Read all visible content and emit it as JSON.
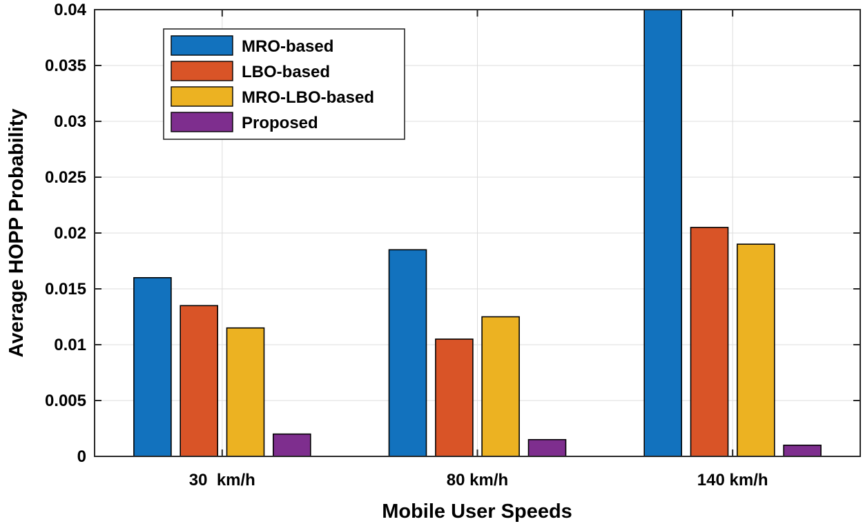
{
  "chart_data": {
    "type": "bar",
    "title": "",
    "xlabel": "Mobile User Speeds",
    "ylabel": "Average HOPP Probability",
    "categories": [
      "30  km/h",
      "80 km/h",
      "140 km/h"
    ],
    "ylim": [
      0,
      0.04
    ],
    "yticks": [
      0,
      0.005,
      0.01,
      0.015,
      0.02,
      0.025,
      0.03,
      0.035,
      0.04
    ],
    "ytick_labels": [
      "0",
      "0.005",
      "0.01",
      "0.015",
      "0.02",
      "0.025",
      "0.03",
      "0.035",
      "0.04"
    ],
    "grid": true,
    "legend_position": "top-left",
    "series": [
      {
        "name": "MRO-based",
        "color": "#1272BE",
        "values": [
          0.016,
          0.0185,
          0.04
        ]
      },
      {
        "name": "LBO-based",
        "color": "#D95427",
        "values": [
          0.0135,
          0.0105,
          0.0205
        ]
      },
      {
        "name": "MRO-LBO-based",
        "color": "#ECB222",
        "values": [
          0.0115,
          0.0125,
          0.019
        ]
      },
      {
        "name": "Proposed",
        "color": "#7E2E8E",
        "values": [
          0.002,
          0.0015,
          0.001
        ]
      }
    ]
  }
}
